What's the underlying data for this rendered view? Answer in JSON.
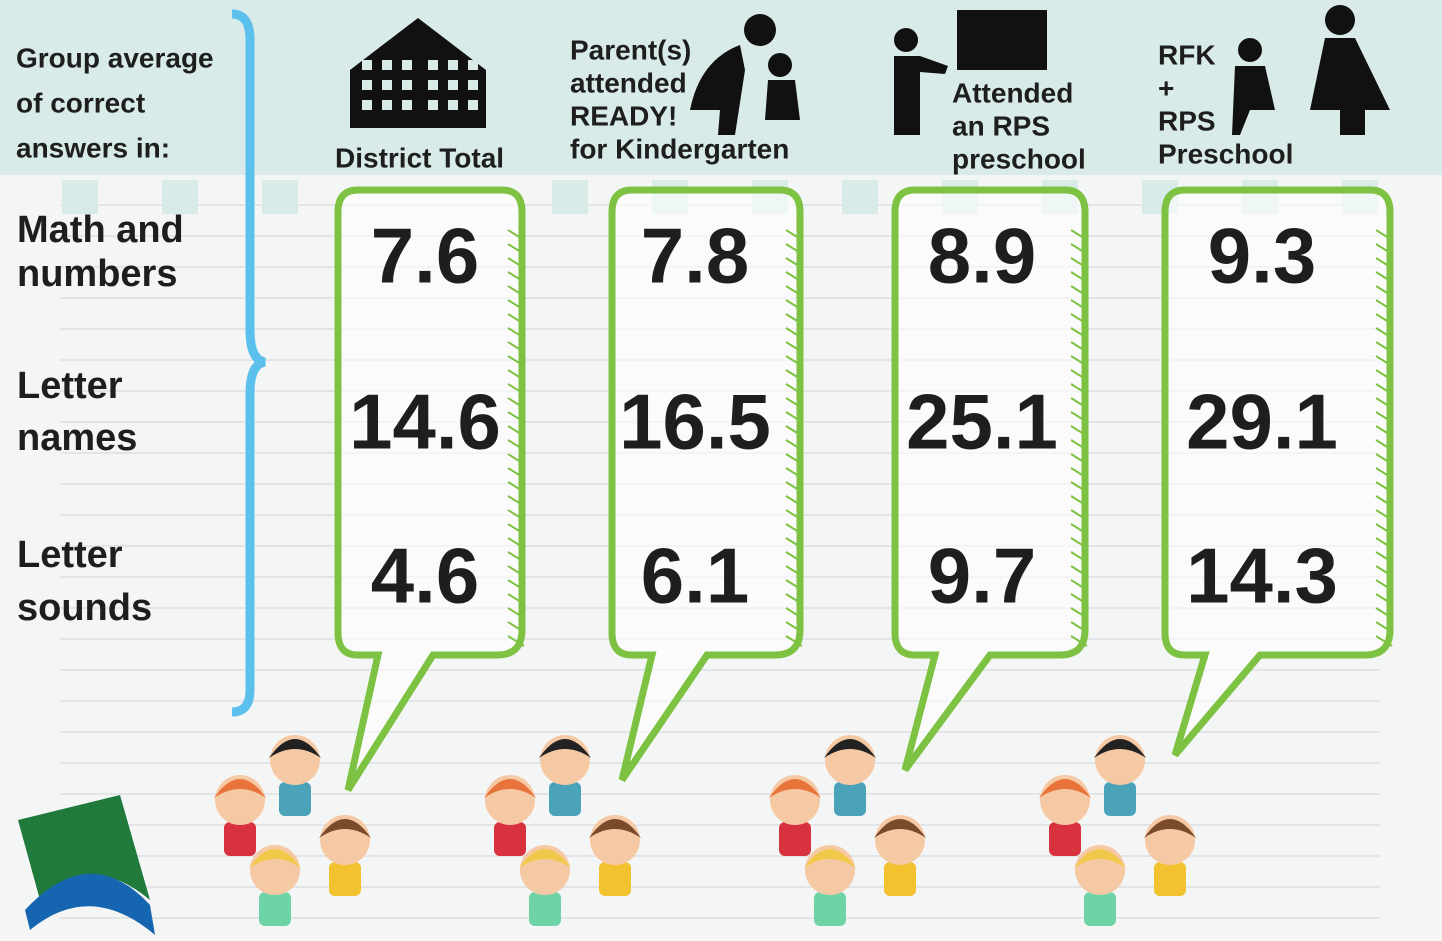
{
  "header": {
    "label": [
      "Group average",
      "of correct",
      "answers in:"
    ]
  },
  "columns": [
    [
      "District Total"
    ],
    [
      "Parent(s)",
      "attended",
      "READY!",
      "for Kindergarten"
    ],
    [
      "Attended",
      "an RPS",
      "preschool"
    ],
    [
      "RFK",
      "+",
      "RPS",
      "Preschool"
    ]
  ],
  "rows": [
    {
      "label": [
        "Math and",
        "numbers"
      ],
      "values": [
        7.6,
        7.8,
        8.9,
        9.3
      ]
    },
    {
      "label": [
        "Letter",
        "names"
      ],
      "values": [
        14.6,
        16.5,
        25.1,
        29.1
      ]
    },
    {
      "label": [
        "Letter",
        "sounds"
      ],
      "values": [
        4.6,
        6.1,
        9.7,
        14.3
      ]
    }
  ]
}
